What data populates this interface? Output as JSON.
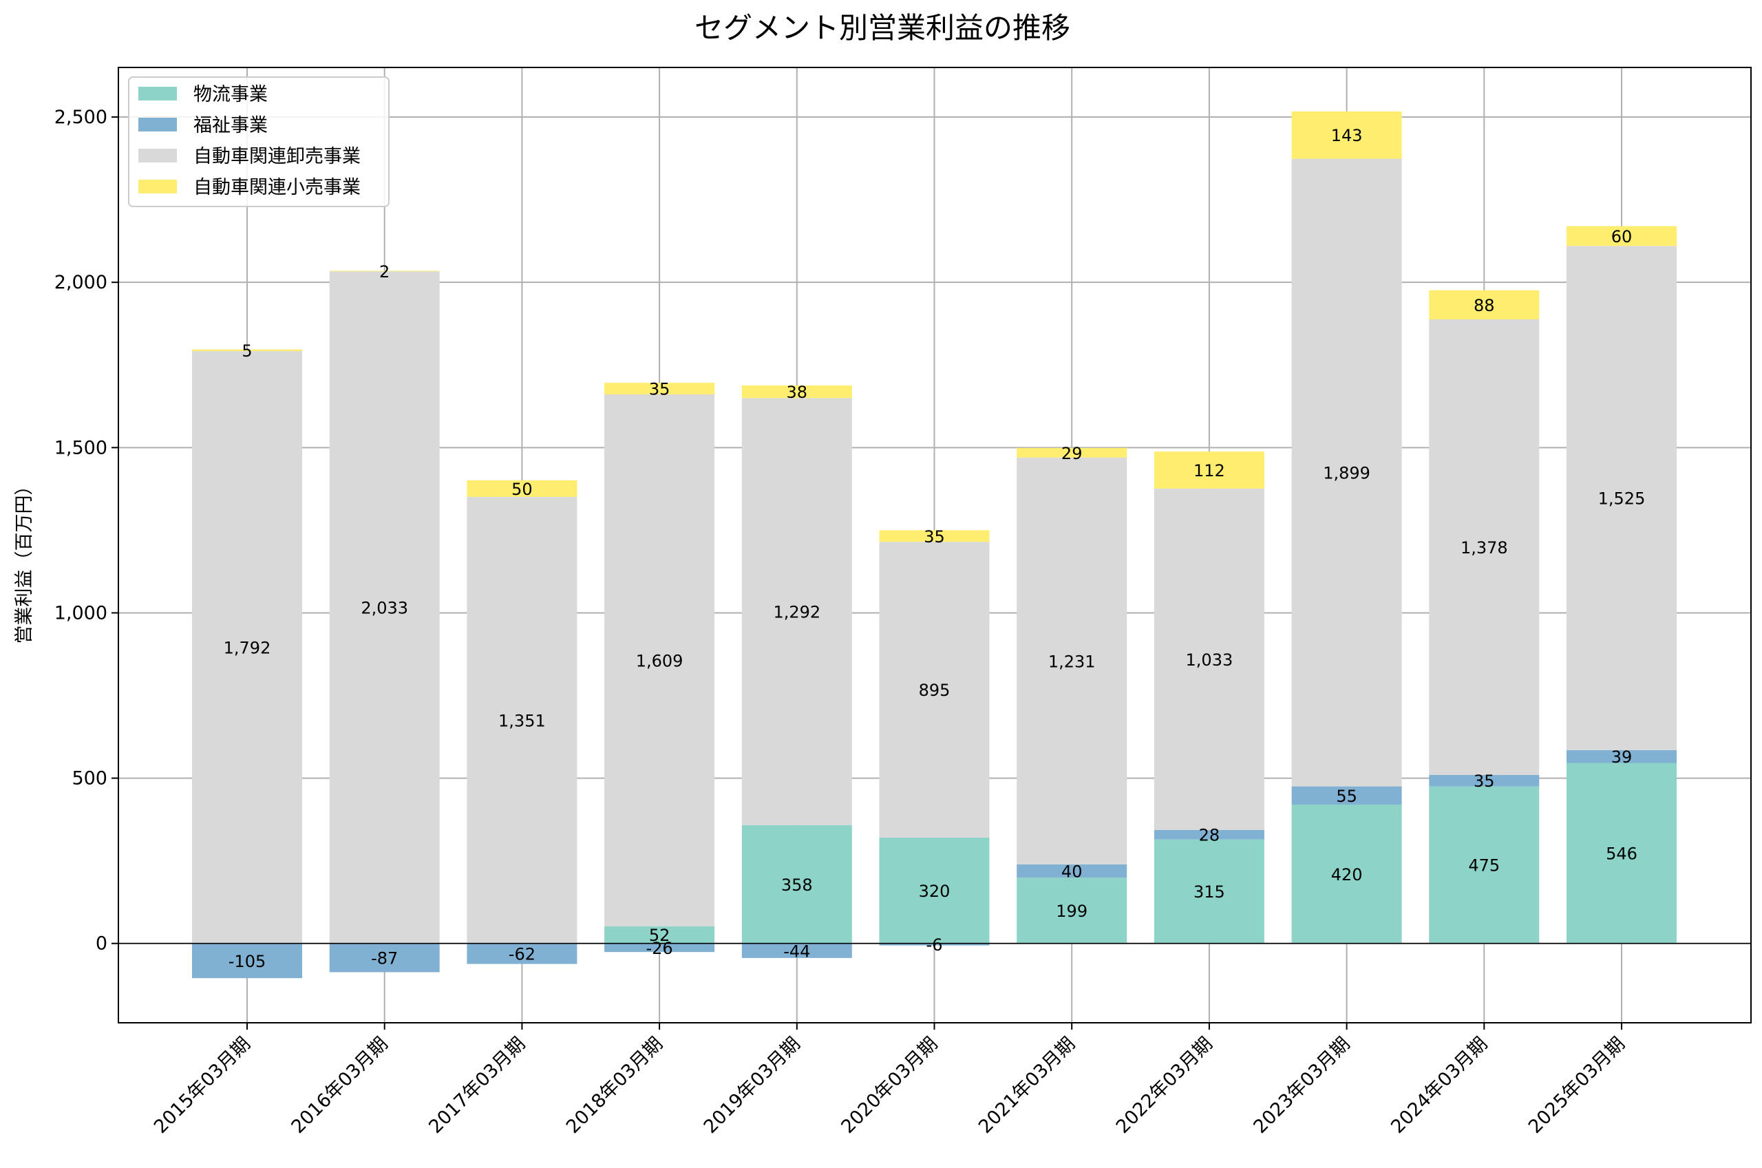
{
  "chart_data": {
    "type": "bar",
    "stacked": true,
    "title": "セグメント別営業利益の推移",
    "xlabel": "",
    "ylabel": "営業利益（百万円）",
    "ylim": [
      -240,
      2650
    ],
    "yticks": [
      0,
      500,
      1000,
      1500,
      2000,
      2500
    ],
    "ytick_labels": [
      "0",
      "500",
      "1,000",
      "1,500",
      "2,000",
      "2,500"
    ],
    "grid": true,
    "legend_position": "top-left",
    "categories": [
      "2015年03月期",
      "2016年03月期",
      "2017年03月期",
      "2018年03月期",
      "2019年03月期",
      "2020年03月期",
      "2021年03月期",
      "2022年03月期",
      "2023年03月期",
      "2024年03月期",
      "2025年03月期"
    ],
    "series": [
      {
        "name": "物流事業",
        "color": "#8dd3c7",
        "values": [
          0,
          0,
          0,
          52,
          358,
          320,
          199,
          315,
          420,
          475,
          546
        ],
        "labels": [
          "",
          "",
          "",
          "52",
          "358",
          "320",
          "199",
          "315",
          "420",
          "475",
          "546"
        ]
      },
      {
        "name": "福祉事業",
        "color": "#80b1d3",
        "values": [
          -105,
          -87,
          -62,
          -26,
          -44,
          -6,
          40,
          28,
          55,
          35,
          39
        ],
        "labels": [
          "-105",
          "-87",
          "-62",
          "-26",
          "-44",
          "-6",
          "40",
          "28",
          "55",
          "35",
          "39"
        ]
      },
      {
        "name": "自動車関連卸売事業",
        "color": "#d9d9d9",
        "values": [
          1792,
          2033,
          1351,
          1609,
          1292,
          895,
          1231,
          1033,
          1899,
          1378,
          1525
        ],
        "labels": [
          "1,792",
          "2,033",
          "1,351",
          "1,609",
          "1,292",
          "895",
          "1,231",
          "1,033",
          "1,899",
          "1,378",
          "1,525"
        ]
      },
      {
        "name": "自動車関連小売事業",
        "color": "#ffed6f",
        "values": [
          5,
          2,
          50,
          35,
          38,
          35,
          29,
          112,
          143,
          88,
          60
        ],
        "labels": [
          "5",
          "2",
          "50",
          "35",
          "38",
          "35",
          "29",
          "112",
          "143",
          "88",
          "60"
        ]
      }
    ]
  }
}
